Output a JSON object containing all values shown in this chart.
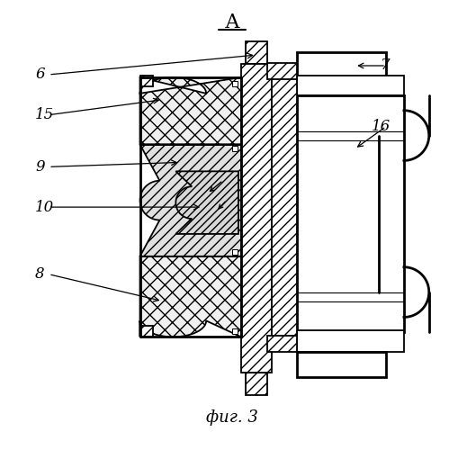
{
  "title": "А",
  "caption": "фиг. 3",
  "bg_color": "#ffffff",
  "line_color": "#000000",
  "lw_thin": 0.8,
  "lw_main": 1.3,
  "lw_thick": 2.0,
  "label_fontsize": 12,
  "title_fontsize": 16,
  "caption_fontsize": 13
}
